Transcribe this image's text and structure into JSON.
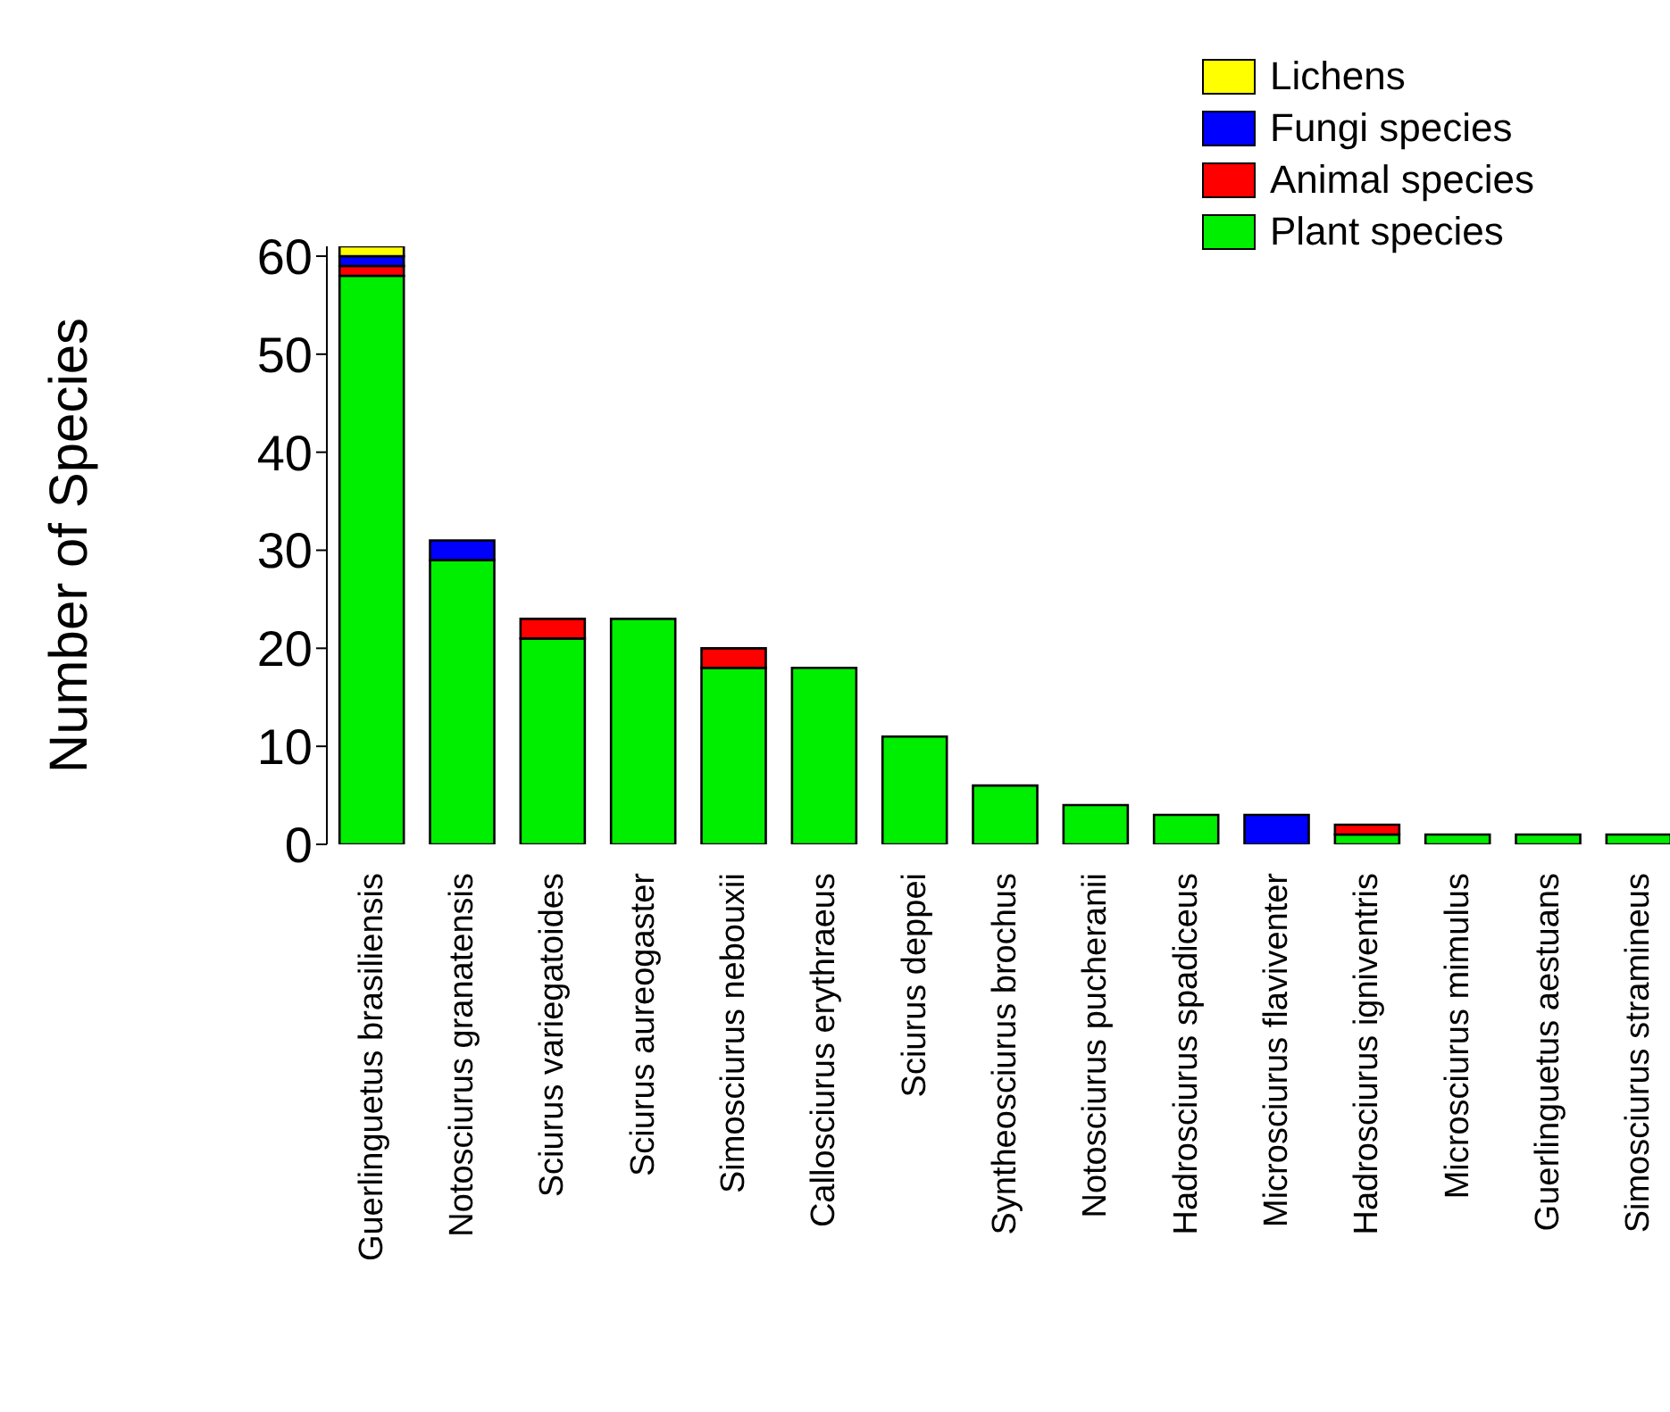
{
  "chart_data": {
    "type": "bar",
    "stacked": true,
    "ylabel": "Number of Species",
    "categories": [
      "Guerlinguetus brasiliensis",
      "Notosciurus granatensis",
      "Sciurus variegatoides",
      "Sciurus aureogaster",
      "Simosciurus nebouxii",
      "Callosciurus erythraeus",
      "Sciurus deppei",
      "Syntheosciurus brochus",
      "Notosciurus pucheranii",
      "Hadrosciurus spadiceus",
      "Microsciurus flaviventer",
      "Hadrosciurus igniventris",
      "Microsciurus mimulus",
      "Guerlinguetus aestuans",
      "Simosciurus stramineus"
    ],
    "series": [
      {
        "name": "Plant species",
        "color": "#00ee00",
        "values": [
          58,
          29,
          21,
          23,
          18,
          18,
          11,
          6,
          4,
          3,
          null,
          1,
          1,
          1,
          1
        ]
      },
      {
        "name": "Animal species",
        "color": "#ff0000",
        "values": [
          1,
          null,
          2,
          null,
          2,
          null,
          null,
          null,
          null,
          null,
          null,
          1,
          null,
          null,
          null
        ]
      },
      {
        "name": "Fungi species",
        "color": "#0000ff",
        "values": [
          1,
          2,
          null,
          null,
          null,
          null,
          null,
          null,
          null,
          null,
          3,
          null,
          null,
          null,
          null
        ]
      },
      {
        "name": "Lichens",
        "color": "#ffff00",
        "values": [
          1,
          null,
          null,
          null,
          null,
          null,
          null,
          null,
          null,
          null,
          null,
          null,
          null,
          null,
          null
        ]
      }
    ],
    "ylim": [
      0,
      61
    ],
    "yticks": [
      0,
      10,
      20,
      30,
      40,
      50,
      60
    ],
    "grid": false,
    "legend": "top right"
  }
}
